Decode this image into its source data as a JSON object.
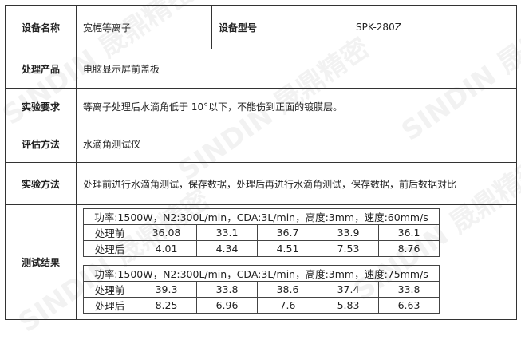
{
  "watermark": "SINDIN 晟鼎精密",
  "rows": {
    "device_name_label": "设备名称",
    "device_name": "宽幅等离子",
    "device_model_label": "设备型号",
    "device_model": "SPK-280Z",
    "product_label": "处理产品",
    "product": "电脑显示屏前盖板",
    "requirement_label": "实验要求",
    "requirement": "等离子处理后水滴角低于 10°以下，不能伤到正面的镀膜层。",
    "evaluation_label": "评估方法",
    "evaluation": "水滴角测试仪",
    "method_label": "实验方法",
    "method": "处理前进行水滴角测试，保存数据，处理后再进行水滴角测试，保存数据，前后数据对比",
    "result_label": "测试结果"
  },
  "results": [
    {
      "condition": "功率:1500W，N2:300L/min，CDA:3L/min，高度:3mm，速度:60mm/s",
      "rows": [
        {
          "label": "处理前",
          "values": [
            "36.08",
            "33.1",
            "36.7",
            "33.9",
            "36.1"
          ]
        },
        {
          "label": "处理后",
          "values": [
            "4.01",
            "4.34",
            "4.51",
            "7.53",
            "8.76"
          ]
        }
      ]
    },
    {
      "condition": "功率:1500W，N2:300L/min，CDA:3L/min，高度:3mm，速度:75mm/s",
      "rows": [
        {
          "label": "处理前",
          "values": [
            "39.3",
            "33.8",
            "38.6",
            "37.4",
            "33.8"
          ]
        },
        {
          "label": "处理后",
          "values": [
            "8.25",
            "6.96",
            "7.6",
            "5.83",
            "6.63"
          ]
        }
      ]
    }
  ]
}
